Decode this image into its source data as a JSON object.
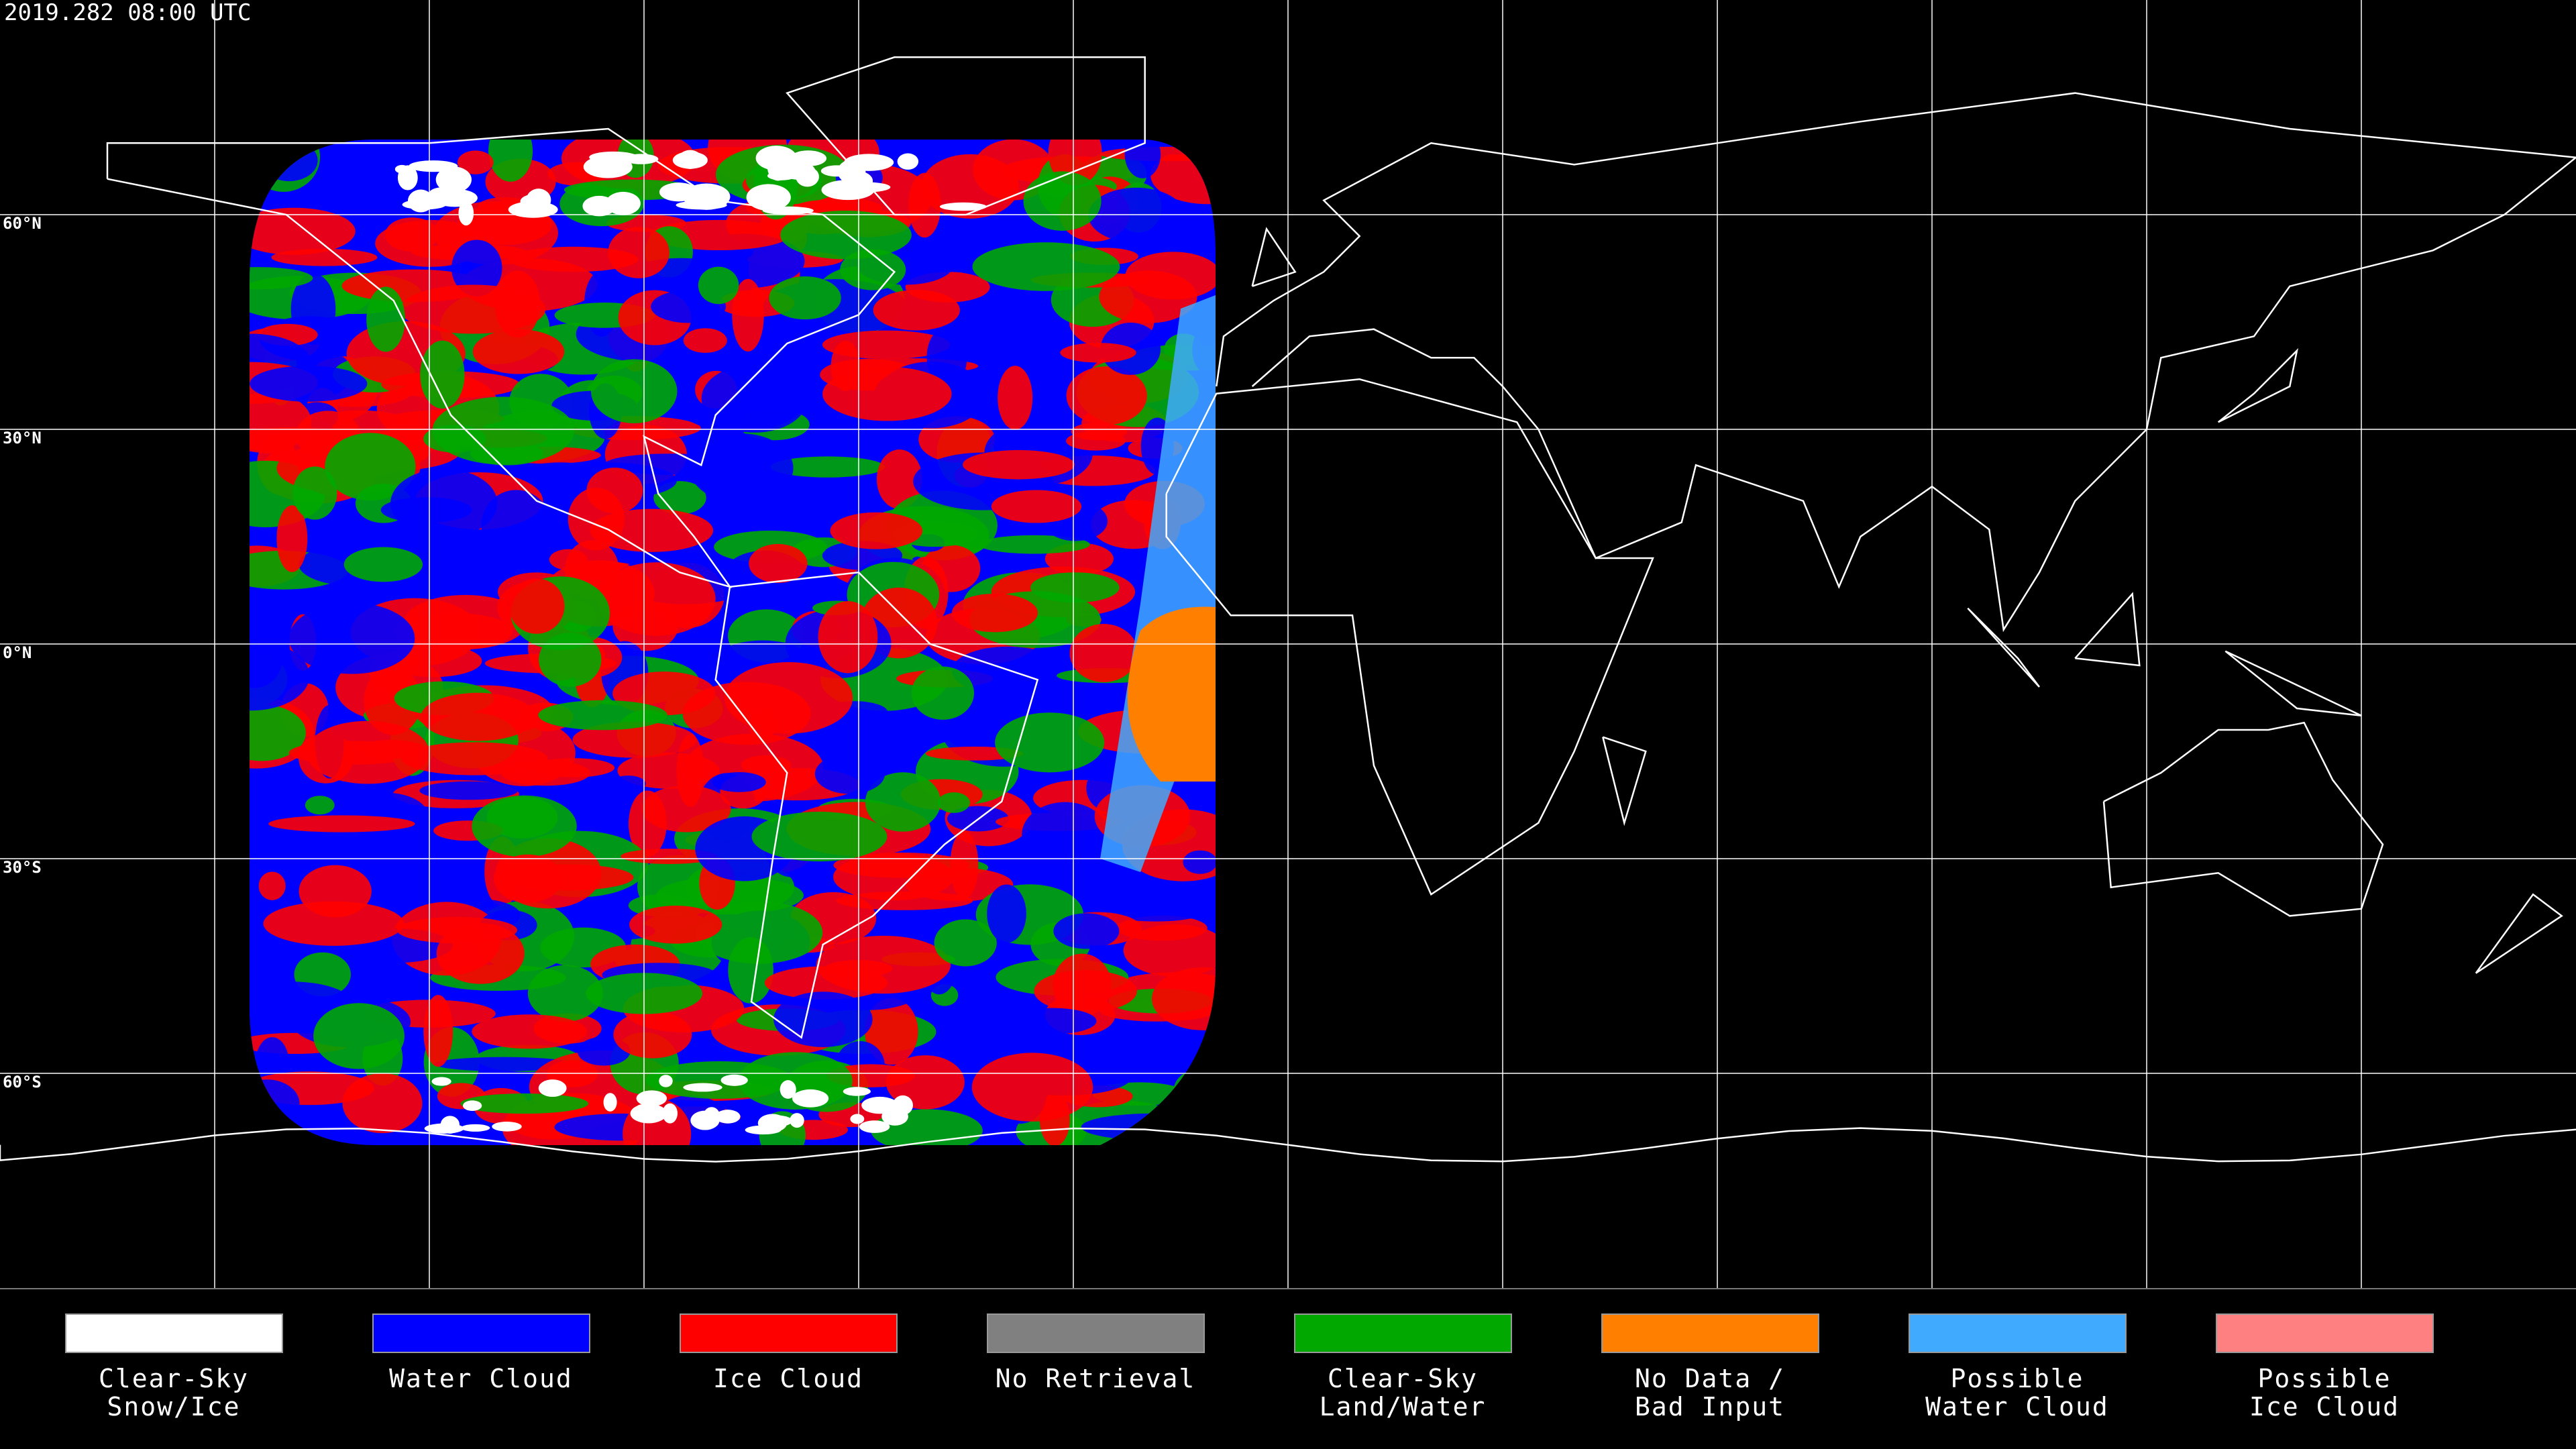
{
  "map": {
    "title": "2019.282 08:00 UTC",
    "latitudes": [
      {
        "value": 60,
        "label": "60°N"
      },
      {
        "value": 30,
        "label": "30°N"
      },
      {
        "value": 0,
        "label": "0°N"
      },
      {
        "value": -30,
        "label": "30°S"
      },
      {
        "value": -60,
        "label": "60°S"
      }
    ],
    "legend": [
      {
        "label": [
          "Clear-Sky",
          "Snow/Ice"
        ],
        "color": "#ffffff"
      },
      {
        "label": [
          "Water Cloud"
        ],
        "color": "#0000ff"
      },
      {
        "label": [
          "Ice Cloud"
        ],
        "color": "#ff0000"
      },
      {
        "label": [
          "No Retrieval"
        ],
        "color": "#808080"
      },
      {
        "label": [
          "Clear-Sky",
          "Land/Water"
        ],
        "color": "#00a800"
      },
      {
        "label": [
          "No Data /",
          "Bad Input"
        ],
        "color": "#ff8000"
      },
      {
        "label": [
          "Possible",
          "Water Cloud"
        ],
        "color": "#40aaff"
      },
      {
        "label": [
          "Possible",
          "Ice Cloud"
        ],
        "color": "#ff8080"
      }
    ]
  }
}
